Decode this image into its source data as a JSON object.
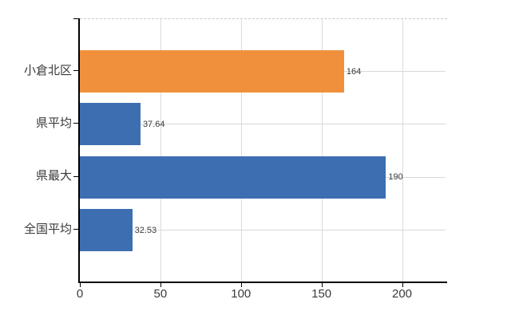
{
  "chart_data": {
    "type": "bar",
    "orientation": "horizontal",
    "title": "",
    "xlabel": "",
    "ylabel": "",
    "categories": [
      "小倉北区",
      "県平均",
      "県最大",
      "全国平均"
    ],
    "values": [
      164,
      37.64,
      190,
      32.53
    ],
    "value_labels": [
      "164",
      "37.64",
      "190",
      "32.53"
    ],
    "bar_colors": [
      "#F0903C",
      "#3D6EB1",
      "#3D6EB1",
      "#3D6EB1"
    ],
    "x_axis": {
      "tick_labels": [
        "0",
        "50",
        "100",
        "150",
        "200"
      ],
      "tick_values": [
        0,
        50,
        100,
        150,
        200
      ],
      "min": 0,
      "max": 228
    },
    "grid": {
      "vertical": true,
      "horizontal": true,
      "top_border_style": "dashed"
    },
    "legend": "none"
  },
  "colors": {
    "background": "#FFFFFF",
    "bar_orange": "#F0903C",
    "bar_blue": "#3D6EB1",
    "axis": "#000000",
    "v_gridline": "#DCDCDC",
    "h_gridline": "#D6DAD6",
    "plot_top_border": "#C9C9C9",
    "label_text": "#3A3A3A"
  }
}
